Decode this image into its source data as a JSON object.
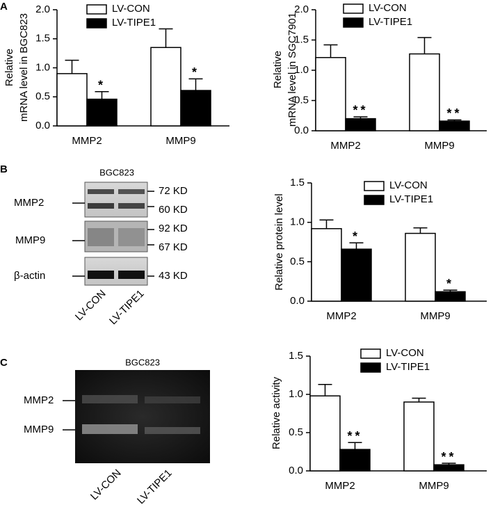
{
  "chart_data": [
    {
      "type": "bar",
      "ylabel": [
        "Relative",
        "mRNA level in BGC823"
      ],
      "categories": [
        "MMP2",
        "MMP9"
      ],
      "series": [
        {
          "name": "LV-CON",
          "color": "#ffffff",
          "values": [
            0.9,
            1.35
          ],
          "errors": [
            0.23,
            0.32
          ],
          "significance": [
            null,
            null
          ]
        },
        {
          "name": "LV-TIPE1",
          "color": "#000000",
          "values": [
            0.46,
            0.61
          ],
          "errors": [
            0.13,
            0.2
          ],
          "significance": [
            "*",
            "*"
          ]
        }
      ],
      "ylim": [
        0,
        2
      ],
      "yticks": [
        {
          "value": 0,
          "label": "0.0"
        },
        0.5,
        {
          "value": 1,
          "label": "1.0"
        },
        1.5,
        {
          "value": 2,
          "label": "2.0"
        }
      ]
    },
    {
      "type": "bar",
      "ylabel": [
        "Relative",
        "mRNA level in SGC7901"
      ],
      "categories": [
        "MMP2",
        "MMP9"
      ],
      "series": [
        {
          "name": "LV-CON",
          "color": "#ffffff",
          "values": [
            1.21,
            1.27
          ],
          "errors": [
            0.21,
            0.27
          ],
          "significance": [
            null,
            null
          ]
        },
        {
          "name": "LV-TIPE1",
          "color": "#000000",
          "values": [
            0.2,
            0.16
          ],
          "errors": [
            0.03,
            0.02
          ],
          "significance": [
            "**",
            "**"
          ]
        }
      ],
      "ylim": [
        0,
        2
      ],
      "yticks": [
        {
          "value": 0,
          "label": "0.0"
        },
        0.5,
        {
          "value": 1,
          "label": "1.0"
        },
        1.5,
        {
          "value": 2,
          "label": "2.0"
        }
      ]
    },
    {
      "type": "bar",
      "ylabel": [
        "Relative protein level"
      ],
      "categories": [
        "MMP2",
        "MMP9"
      ],
      "series": [
        {
          "name": "LV-CON",
          "color": "#ffffff",
          "values": [
            0.92,
            0.86
          ],
          "errors": [
            0.11,
            0.07
          ],
          "significance": [
            null,
            null
          ]
        },
        {
          "name": "LV-TIPE1",
          "color": "#000000",
          "values": [
            0.66,
            0.12
          ],
          "errors": [
            0.08,
            0.02
          ],
          "significance": [
            "*",
            "*"
          ]
        }
      ],
      "ylim": [
        0,
        1.5
      ],
      "yticks": [
        {
          "value": 0,
          "label": "0.0"
        },
        0.5,
        {
          "value": 1,
          "label": "1.0"
        },
        1.5
      ]
    },
    {
      "type": "bar",
      "ylabel": [
        "Relative activity"
      ],
      "categories": [
        "MMP2",
        "MMP9"
      ],
      "series": [
        {
          "name": "LV-CON",
          "color": "#ffffff",
          "values": [
            0.98,
            0.9
          ],
          "errors": [
            0.15,
            0.05
          ],
          "significance": [
            null,
            null
          ]
        },
        {
          "name": "LV-TIPE1",
          "color": "#000000",
          "values": [
            0.28,
            0.08
          ],
          "errors": [
            0.09,
            0.02
          ],
          "significance": [
            "**",
            "**"
          ]
        }
      ],
      "ylim": [
        0,
        1.5
      ],
      "yticks": [
        {
          "value": 0,
          "label": "0.0"
        },
        0.5,
        {
          "value": 1,
          "label": "1.0"
        },
        1.5
      ]
    }
  ],
  "panels": {
    "labels": [
      "A",
      "B",
      "C"
    ],
    "blot": {
      "title": "BGC823",
      "rows": [
        "MMP2",
        "MMP9",
        "β-actin"
      ],
      "markers": [
        "72 KD",
        "60 KD",
        "92 KD",
        "67 KD",
        "43 KD"
      ],
      "lanes": [
        "LV-CON",
        "LV-TIPE1"
      ]
    },
    "zymogram": {
      "title": "BGC823",
      "rows": [
        "MMP2",
        "MMP9"
      ],
      "lanes": [
        "LV-CON",
        "LV-TIPE1"
      ]
    }
  }
}
